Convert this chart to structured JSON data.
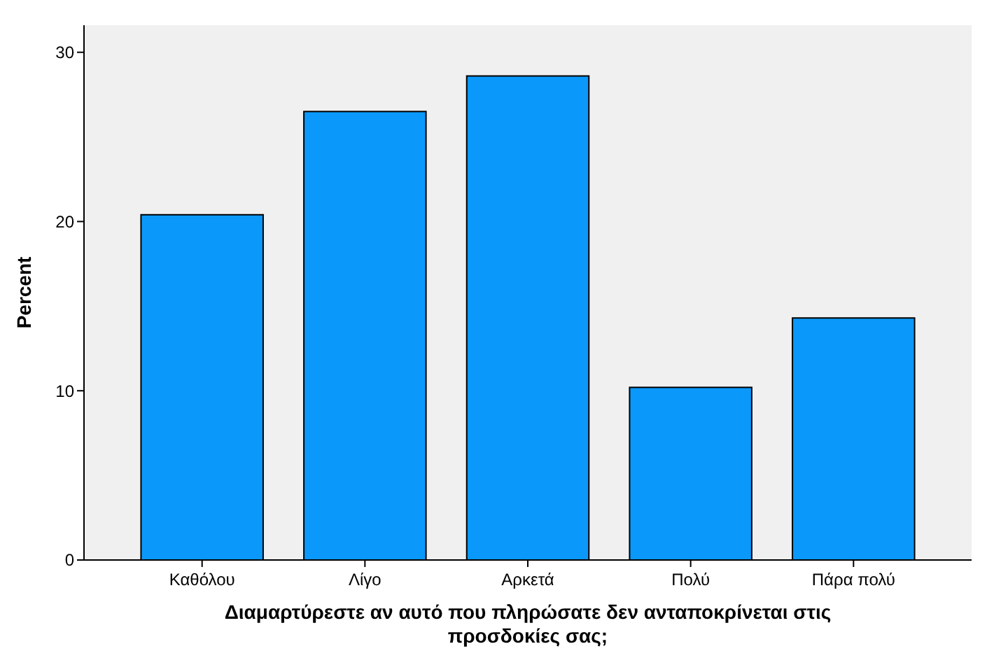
{
  "chart_data": {
    "type": "bar",
    "xlabel": "Διαμαρτύρεστε αν αυτό που πληρώσατε δεν ανταποκρίνεται στις προσδοκίες σας;",
    "ylabel": "Percent",
    "categories": [
      "Καθόλου",
      "Λίγο",
      "Αρκετά",
      "Πολύ",
      "Πάρα πολύ"
    ],
    "values": [
      20.4,
      26.5,
      28.6,
      10.2,
      14.3
    ],
    "color": "#0a99fa",
    "ylim": [
      0,
      31.6
    ],
    "yticks": [
      0,
      10,
      20,
      30
    ],
    "grid": false
  }
}
